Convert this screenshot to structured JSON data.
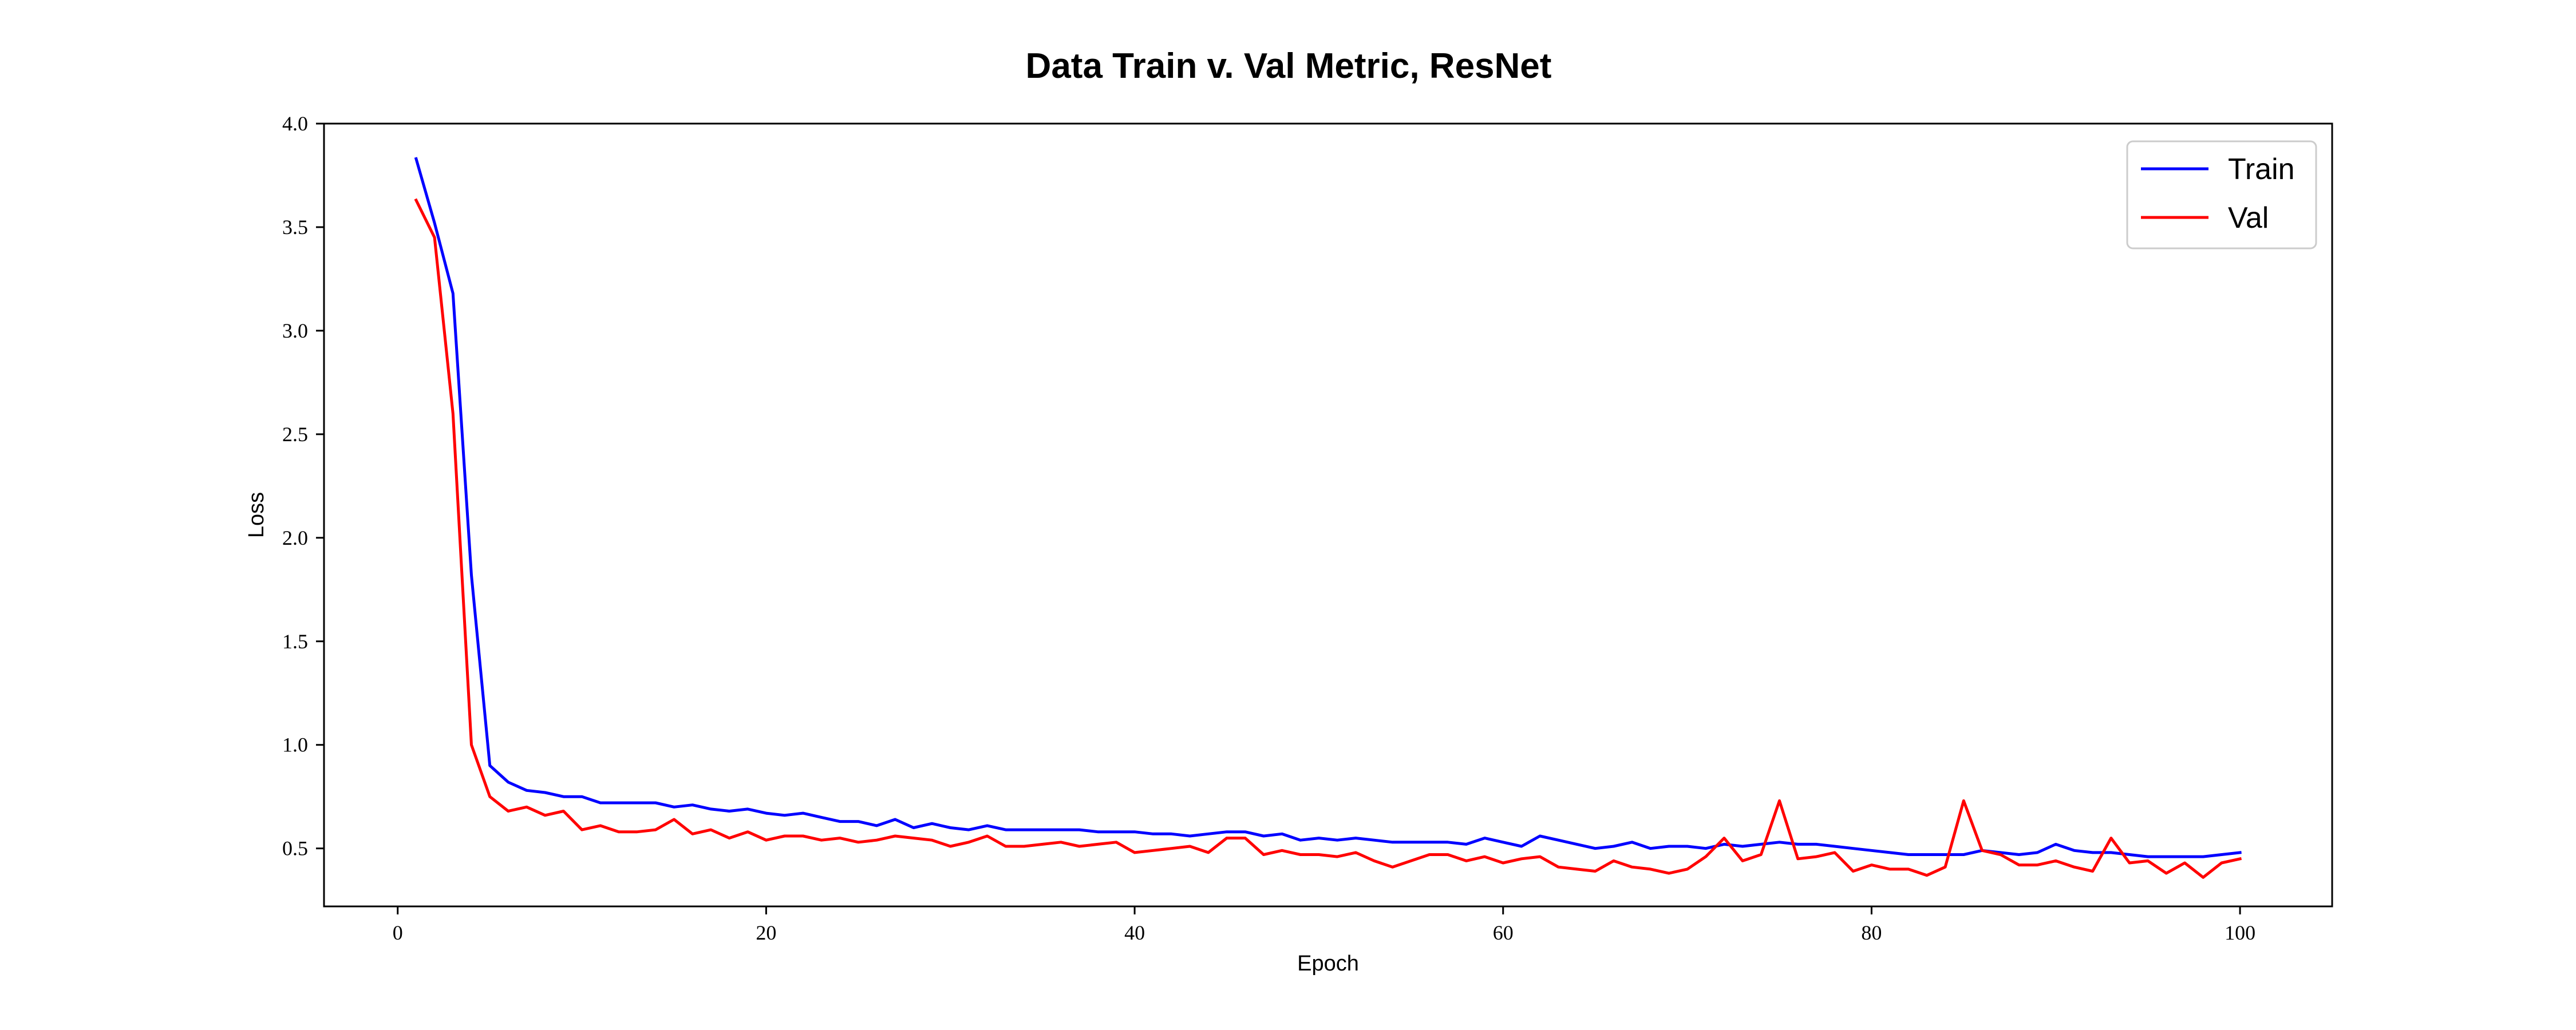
{
  "chart_data": {
    "type": "line",
    "title": "Data Train v. Val Metric, ResNet",
    "xlabel": "Epoch",
    "ylabel": "Loss",
    "xlim": [
      -4,
      105
    ],
    "ylim": [
      0.22,
      4.0
    ],
    "xticks": [
      0,
      20,
      40,
      60,
      80,
      100
    ],
    "yticks": [
      0.5,
      1.0,
      1.5,
      2.0,
      2.5,
      3.0,
      3.5,
      4.0
    ],
    "grid": false,
    "legend_position": "top-right",
    "x": [
      1,
      2,
      3,
      4,
      5,
      6,
      7,
      8,
      9,
      10,
      11,
      12,
      13,
      14,
      15,
      16,
      17,
      18,
      19,
      20,
      21,
      22,
      23,
      24,
      25,
      26,
      27,
      28,
      29,
      30,
      31,
      32,
      33,
      34,
      35,
      36,
      37,
      38,
      39,
      40,
      41,
      42,
      43,
      44,
      45,
      46,
      47,
      48,
      49,
      50,
      51,
      52,
      53,
      54,
      55,
      56,
      57,
      58,
      59,
      60,
      61,
      62,
      63,
      64,
      65,
      66,
      67,
      68,
      69,
      70,
      71,
      72,
      73,
      74,
      75,
      76,
      77,
      78,
      79,
      80,
      81,
      82,
      83,
      84,
      85,
      86,
      87,
      88,
      89,
      90,
      91,
      92,
      93,
      94,
      95,
      96,
      97,
      98,
      99,
      100
    ],
    "series": [
      {
        "name": "Train",
        "color": "#0000ff",
        "values": [
          3.83,
          3.52,
          3.18,
          1.82,
          0.9,
          0.82,
          0.78,
          0.77,
          0.75,
          0.75,
          0.72,
          0.72,
          0.72,
          0.72,
          0.7,
          0.71,
          0.69,
          0.68,
          0.69,
          0.67,
          0.66,
          0.67,
          0.65,
          0.63,
          0.63,
          0.61,
          0.64,
          0.6,
          0.62,
          0.6,
          0.59,
          0.61,
          0.59,
          0.59,
          0.59,
          0.59,
          0.59,
          0.58,
          0.58,
          0.58,
          0.57,
          0.57,
          0.56,
          0.57,
          0.58,
          0.58,
          0.56,
          0.57,
          0.54,
          0.55,
          0.54,
          0.55,
          0.54,
          0.53,
          0.53,
          0.53,
          0.53,
          0.52,
          0.55,
          0.53,
          0.51,
          0.56,
          0.54,
          0.52,
          0.5,
          0.51,
          0.53,
          0.5,
          0.51,
          0.51,
          0.5,
          0.52,
          0.51,
          0.52,
          0.53,
          0.52,
          0.52,
          0.51,
          0.5,
          0.49,
          0.48,
          0.47,
          0.47,
          0.47,
          0.47,
          0.49,
          0.48,
          0.47,
          0.48,
          0.52,
          0.49,
          0.48,
          0.48,
          0.47,
          0.46,
          0.46,
          0.46,
          0.46,
          0.47,
          0.48
        ]
      },
      {
        "name": "Val",
        "color": "#ff0000",
        "values": [
          3.63,
          3.45,
          2.6,
          1.0,
          0.75,
          0.68,
          0.7,
          0.66,
          0.68,
          0.59,
          0.61,
          0.58,
          0.58,
          0.59,
          0.64,
          0.57,
          0.59,
          0.55,
          0.58,
          0.54,
          0.56,
          0.56,
          0.54,
          0.55,
          0.53,
          0.54,
          0.56,
          0.55,
          0.54,
          0.51,
          0.53,
          0.56,
          0.51,
          0.51,
          0.52,
          0.53,
          0.51,
          0.52,
          0.53,
          0.48,
          0.49,
          0.5,
          0.51,
          0.48,
          0.55,
          0.55,
          0.47,
          0.49,
          0.47,
          0.47,
          0.46,
          0.48,
          0.44,
          0.41,
          0.44,
          0.47,
          0.47,
          0.44,
          0.46,
          0.43,
          0.45,
          0.46,
          0.41,
          0.4,
          0.39,
          0.44,
          0.41,
          0.4,
          0.38,
          0.4,
          0.46,
          0.55,
          0.44,
          0.47,
          0.73,
          0.45,
          0.46,
          0.48,
          0.39,
          0.42,
          0.4,
          0.4,
          0.37,
          0.41,
          0.73,
          0.49,
          0.47,
          0.42,
          0.42,
          0.44,
          0.41,
          0.39,
          0.55,
          0.43,
          0.44,
          0.38,
          0.43,
          0.36,
          0.43,
          0.45
        ]
      }
    ]
  }
}
